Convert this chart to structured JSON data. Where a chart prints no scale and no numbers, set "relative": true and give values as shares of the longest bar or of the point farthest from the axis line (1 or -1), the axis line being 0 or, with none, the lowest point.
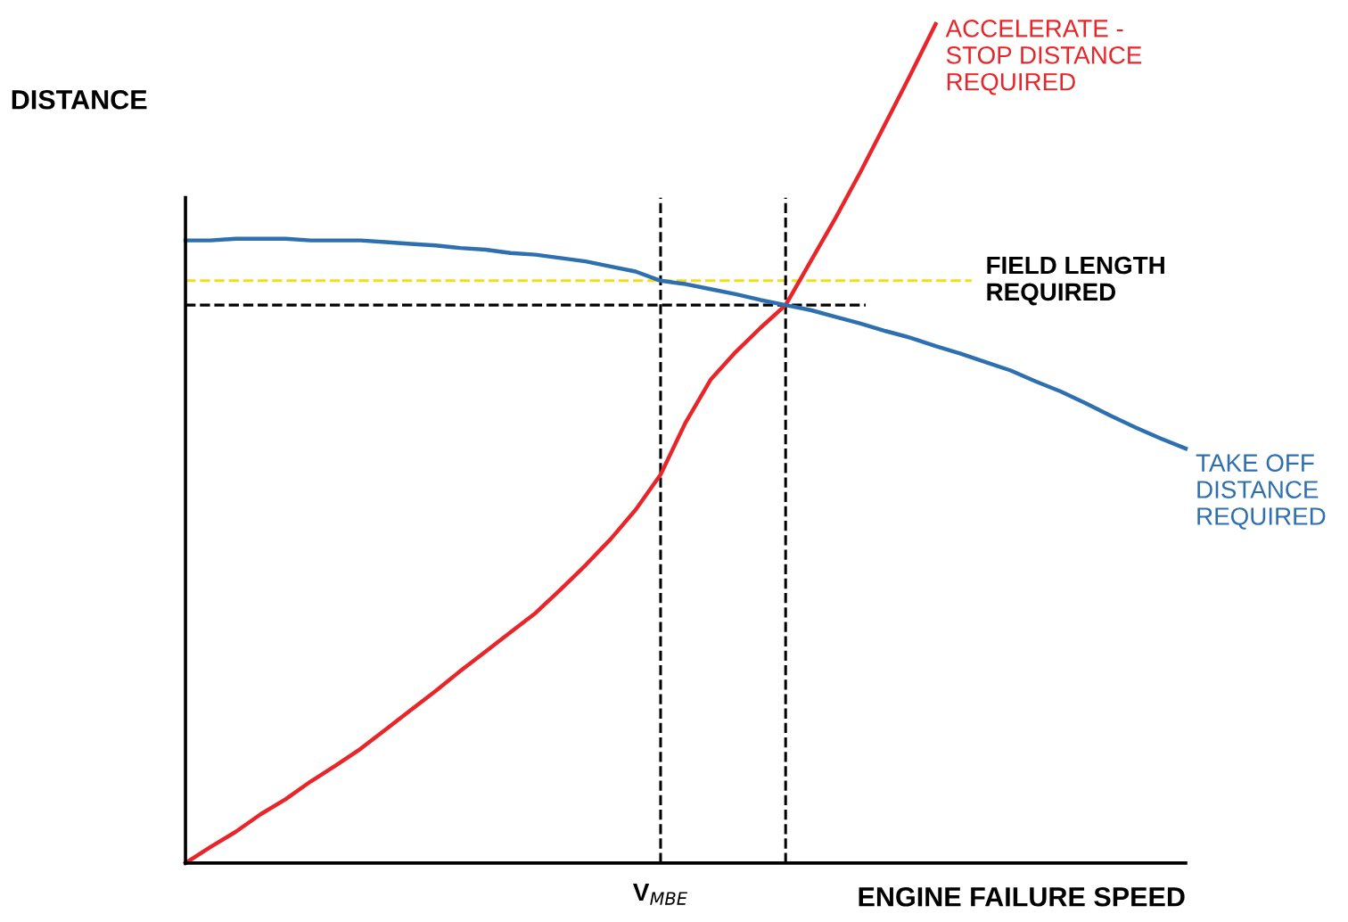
{
  "chart_data": {
    "type": "line",
    "relative": true,
    "xlabel": "ENGINE FAILURE SPEED",
    "ylabel": "DISTANCE",
    "marker": "none",
    "line_style": "solid",
    "categories": [
      null,
      null,
      null,
      null,
      null,
      null,
      null,
      null,
      null,
      null,
      null,
      null,
      null,
      null,
      null,
      null,
      null,
      null,
      null,
      null,
      null,
      null,
      null,
      null,
      null,
      null,
      null,
      null,
      null,
      null,
      null,
      null,
      null,
      null,
      null,
      null,
      null,
      null,
      null,
      null,
      null
    ],
    "series": [
      {
        "name": "ACCELERATE -\nSTOP DISTANCE\nREQUIRED",
        "color": "#e8262a",
        "values": [
          0,
          0.019,
          0.037,
          0.058,
          0.076,
          0.097,
          0.116,
          0.136,
          0.159,
          0.182,
          0.205,
          0.229,
          0.252,
          0.275,
          0.298,
          0.326,
          0.355,
          0.386,
          0.421,
          0.463,
          0.525,
          0.576,
          0.609,
          0.638,
          0.665,
          0.717,
          0.769,
          0.824,
          0.882,
          0.94,
          1,
          null,
          null,
          null,
          null,
          null,
          null,
          null,
          null,
          null,
          null
        ]
      },
      {
        "name": "TAKE OFF\nDISTANCE\nREQUIRED",
        "color": "#2e6fb0",
        "values": [
          0.742,
          0.742,
          0.744,
          0.744,
          0.744,
          0.742,
          0.742,
          0.742,
          0.74,
          0.738,
          0.736,
          0.733,
          0.731,
          0.727,
          0.725,
          0.721,
          0.717,
          0.711,
          0.705,
          0.694,
          0.69,
          0.684,
          0.678,
          0.671,
          0.665,
          0.659,
          0.651,
          0.643,
          0.634,
          0.626,
          0.616,
          0.607,
          0.597,
          0.587,
          0.574,
          0.562,
          0.548,
          0.533,
          0.519,
          0.506,
          0.494
        ]
      }
    ],
    "ref_lines": [
      {
        "axis": "y",
        "value": 0.694,
        "label": "FIELD LENGTH\nREQUIRED",
        "color": "#f2dc1c",
        "line_style": "dashed"
      },
      {
        "axis": "y",
        "value": 0.665,
        "color": "#000000",
        "line_style": "dashed"
      }
    ],
    "annotations": [
      "V$_{MBE}$"
    ]
  }
}
